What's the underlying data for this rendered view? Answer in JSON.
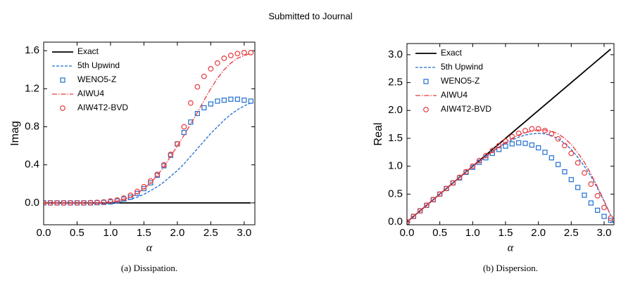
{
  "header": "Submitted to Journal",
  "chart_data": [
    {
      "type": "line",
      "caption": "(a) Dissipation.",
      "xlabel": "α",
      "ylabel": "Imag",
      "xlim": [
        0,
        3.16
      ],
      "ylim": [
        -0.23,
        1.69
      ],
      "xticks": [
        {
          "value": 0,
          "label": "0.0"
        },
        0.5,
        {
          "value": 1,
          "label": "1.0"
        },
        1.5,
        {
          "value": 2,
          "label": "2.0"
        },
        2.5,
        {
          "value": 3,
          "label": "3.0"
        }
      ],
      "yticks": [
        {
          "value": 0,
          "label": "0.0"
        },
        0.4,
        0.8,
        1.2,
        1.6
      ],
      "x": [
        0,
        0.1,
        0.2,
        0.3,
        0.4,
        0.5,
        0.6,
        0.7,
        0.8,
        0.9,
        1.0,
        1.1,
        1.2,
        1.3,
        1.4,
        1.5,
        1.6,
        1.7,
        1.8,
        1.9,
        2.0,
        2.1,
        2.2,
        2.3,
        2.4,
        2.5,
        2.6,
        2.7,
        2.8,
        2.9,
        3.0,
        3.1
      ],
      "series": [
        {
          "name": "Exact",
          "color": "#000000",
          "style": "solid",
          "values": [
            0,
            0,
            0,
            0,
            0,
            0,
            0,
            0,
            0,
            0,
            0,
            0,
            0,
            0,
            0,
            0,
            0,
            0,
            0,
            0,
            0,
            0,
            0,
            0,
            0,
            0,
            0,
            0,
            0,
            0,
            0,
            0
          ]
        },
        {
          "name": "5th Upwind",
          "color": "#1f6fd1",
          "style": "dashed",
          "values": [
            0,
            0,
            0,
            0,
            0,
            0,
            0,
            0,
            0,
            0.002,
            0.005,
            0.01,
            0.02,
            0.04,
            0.06,
            0.09,
            0.13,
            0.17,
            0.22,
            0.28,
            0.34,
            0.41,
            0.49,
            0.57,
            0.65,
            0.73,
            0.8,
            0.87,
            0.93,
            0.98,
            1.02,
            1.05
          ]
        },
        {
          "name": "WENO5-Z",
          "color": "#1f6fd1",
          "marker": "square",
          "values": [
            0,
            0,
            0,
            0,
            0,
            0,
            0,
            0,
            0.002,
            0.005,
            0.01,
            0.02,
            0.04,
            0.06,
            0.1,
            0.15,
            0.21,
            0.29,
            0.39,
            0.5,
            0.62,
            0.74,
            0.85,
            0.94,
            1.0,
            1.04,
            1.07,
            1.08,
            1.09,
            1.09,
            1.08,
            1.07
          ]
        },
        {
          "name": "AIWU4",
          "color": "#e8383d",
          "style": "dashdot",
          "values": [
            0,
            0,
            0,
            0,
            0,
            0,
            0,
            0,
            0.002,
            0.005,
            0.01,
            0.02,
            0.04,
            0.06,
            0.1,
            0.15,
            0.21,
            0.29,
            0.38,
            0.49,
            0.6,
            0.71,
            0.83,
            0.95,
            1.08,
            1.2,
            1.31,
            1.4,
            1.47,
            1.52,
            1.55,
            1.57
          ]
        },
        {
          "name": "AIW4T2-BVD",
          "color": "#e8383d",
          "marker": "circle",
          "values": [
            0,
            0,
            0,
            0,
            0,
            0,
            0,
            0.002,
            0.005,
            0.01,
            0.02,
            0.03,
            0.05,
            0.08,
            0.12,
            0.17,
            0.23,
            0.3,
            0.4,
            0.51,
            0.62,
            0.8,
            1.05,
            1.22,
            1.33,
            1.41,
            1.47,
            1.52,
            1.55,
            1.57,
            1.58,
            1.58
          ]
        }
      ]
    },
    {
      "type": "line",
      "caption": "(b) Dispersion.",
      "xlabel": "α",
      "ylabel": "Real",
      "xlim": [
        0,
        3.15
      ],
      "ylim": [
        -0.05,
        3.2
      ],
      "xticks": [
        {
          "value": 0,
          "label": "0.0"
        },
        0.5,
        {
          "value": 1,
          "label": "1.0"
        },
        1.5,
        {
          "value": 2,
          "label": "2.0"
        },
        2.5,
        {
          "value": 3,
          "label": "3.0"
        }
      ],
      "yticks": [
        {
          "value": 0,
          "label": "0.0"
        },
        0.5,
        {
          "value": 1,
          "label": "1.0"
        },
        1.5,
        {
          "value": 2,
          "label": "2.0"
        },
        2.5,
        {
          "value": 3,
          "label": "3.0"
        }
      ],
      "x": [
        0,
        0.1,
        0.2,
        0.3,
        0.4,
        0.5,
        0.6,
        0.7,
        0.8,
        0.9,
        1.0,
        1.1,
        1.2,
        1.3,
        1.4,
        1.5,
        1.6,
        1.7,
        1.8,
        1.9,
        2.0,
        2.1,
        2.2,
        2.3,
        2.4,
        2.5,
        2.6,
        2.7,
        2.8,
        2.9,
        3.0,
        3.1
      ],
      "series": [
        {
          "name": "Exact",
          "color": "#000000",
          "style": "solid",
          "values": [
            0,
            0.1,
            0.2,
            0.3,
            0.4,
            0.5,
            0.6,
            0.7,
            0.8,
            0.9,
            1.0,
            1.1,
            1.2,
            1.3,
            1.4,
            1.5,
            1.6,
            1.7,
            1.8,
            1.9,
            2.0,
            2.1,
            2.2,
            2.3,
            2.4,
            2.5,
            2.6,
            2.7,
            2.8,
            2.9,
            3.0,
            3.1
          ]
        },
        {
          "name": "5th Upwind",
          "color": "#1f6fd1",
          "style": "dashed",
          "values": [
            0,
            0.1,
            0.2,
            0.3,
            0.4,
            0.5,
            0.6,
            0.7,
            0.8,
            0.9,
            0.99,
            1.08,
            1.17,
            1.26,
            1.34,
            1.41,
            1.47,
            1.52,
            1.56,
            1.58,
            1.59,
            1.58,
            1.55,
            1.49,
            1.41,
            1.3,
            1.16,
            1.0,
            0.82,
            0.6,
            0.37,
            0.12
          ]
        },
        {
          "name": "WENO5-Z",
          "color": "#1f6fd1",
          "marker": "square",
          "values": [
            0,
            0.1,
            0.2,
            0.3,
            0.4,
            0.5,
            0.6,
            0.7,
            0.79,
            0.89,
            0.98,
            1.07,
            1.15,
            1.23,
            1.3,
            1.36,
            1.4,
            1.42,
            1.41,
            1.38,
            1.33,
            1.25,
            1.15,
            1.03,
            0.9,
            0.76,
            0.62,
            0.48,
            0.34,
            0.21,
            0.1,
            0.03
          ]
        },
        {
          "name": "AIWU4",
          "color": "#e8383d",
          "style": "dashdot",
          "values": [
            0,
            0.1,
            0.2,
            0.3,
            0.4,
            0.5,
            0.6,
            0.7,
            0.8,
            0.9,
            1.0,
            1.09,
            1.18,
            1.27,
            1.35,
            1.43,
            1.5,
            1.56,
            1.6,
            1.63,
            1.65,
            1.65,
            1.63,
            1.58,
            1.5,
            1.39,
            1.24,
            1.07,
            0.86,
            0.63,
            0.38,
            0.12
          ]
        },
        {
          "name": "AIW4T2-BVD",
          "color": "#e8383d",
          "marker": "circle",
          "values": [
            0,
            0.1,
            0.2,
            0.3,
            0.4,
            0.5,
            0.6,
            0.7,
            0.8,
            0.9,
            1.0,
            1.1,
            1.19,
            1.28,
            1.37,
            1.45,
            1.53,
            1.59,
            1.64,
            1.67,
            1.67,
            1.64,
            1.58,
            1.49,
            1.37,
            1.23,
            1.06,
            0.88,
            0.68,
            0.47,
            0.26,
            0.07
          ]
        }
      ]
    }
  ]
}
